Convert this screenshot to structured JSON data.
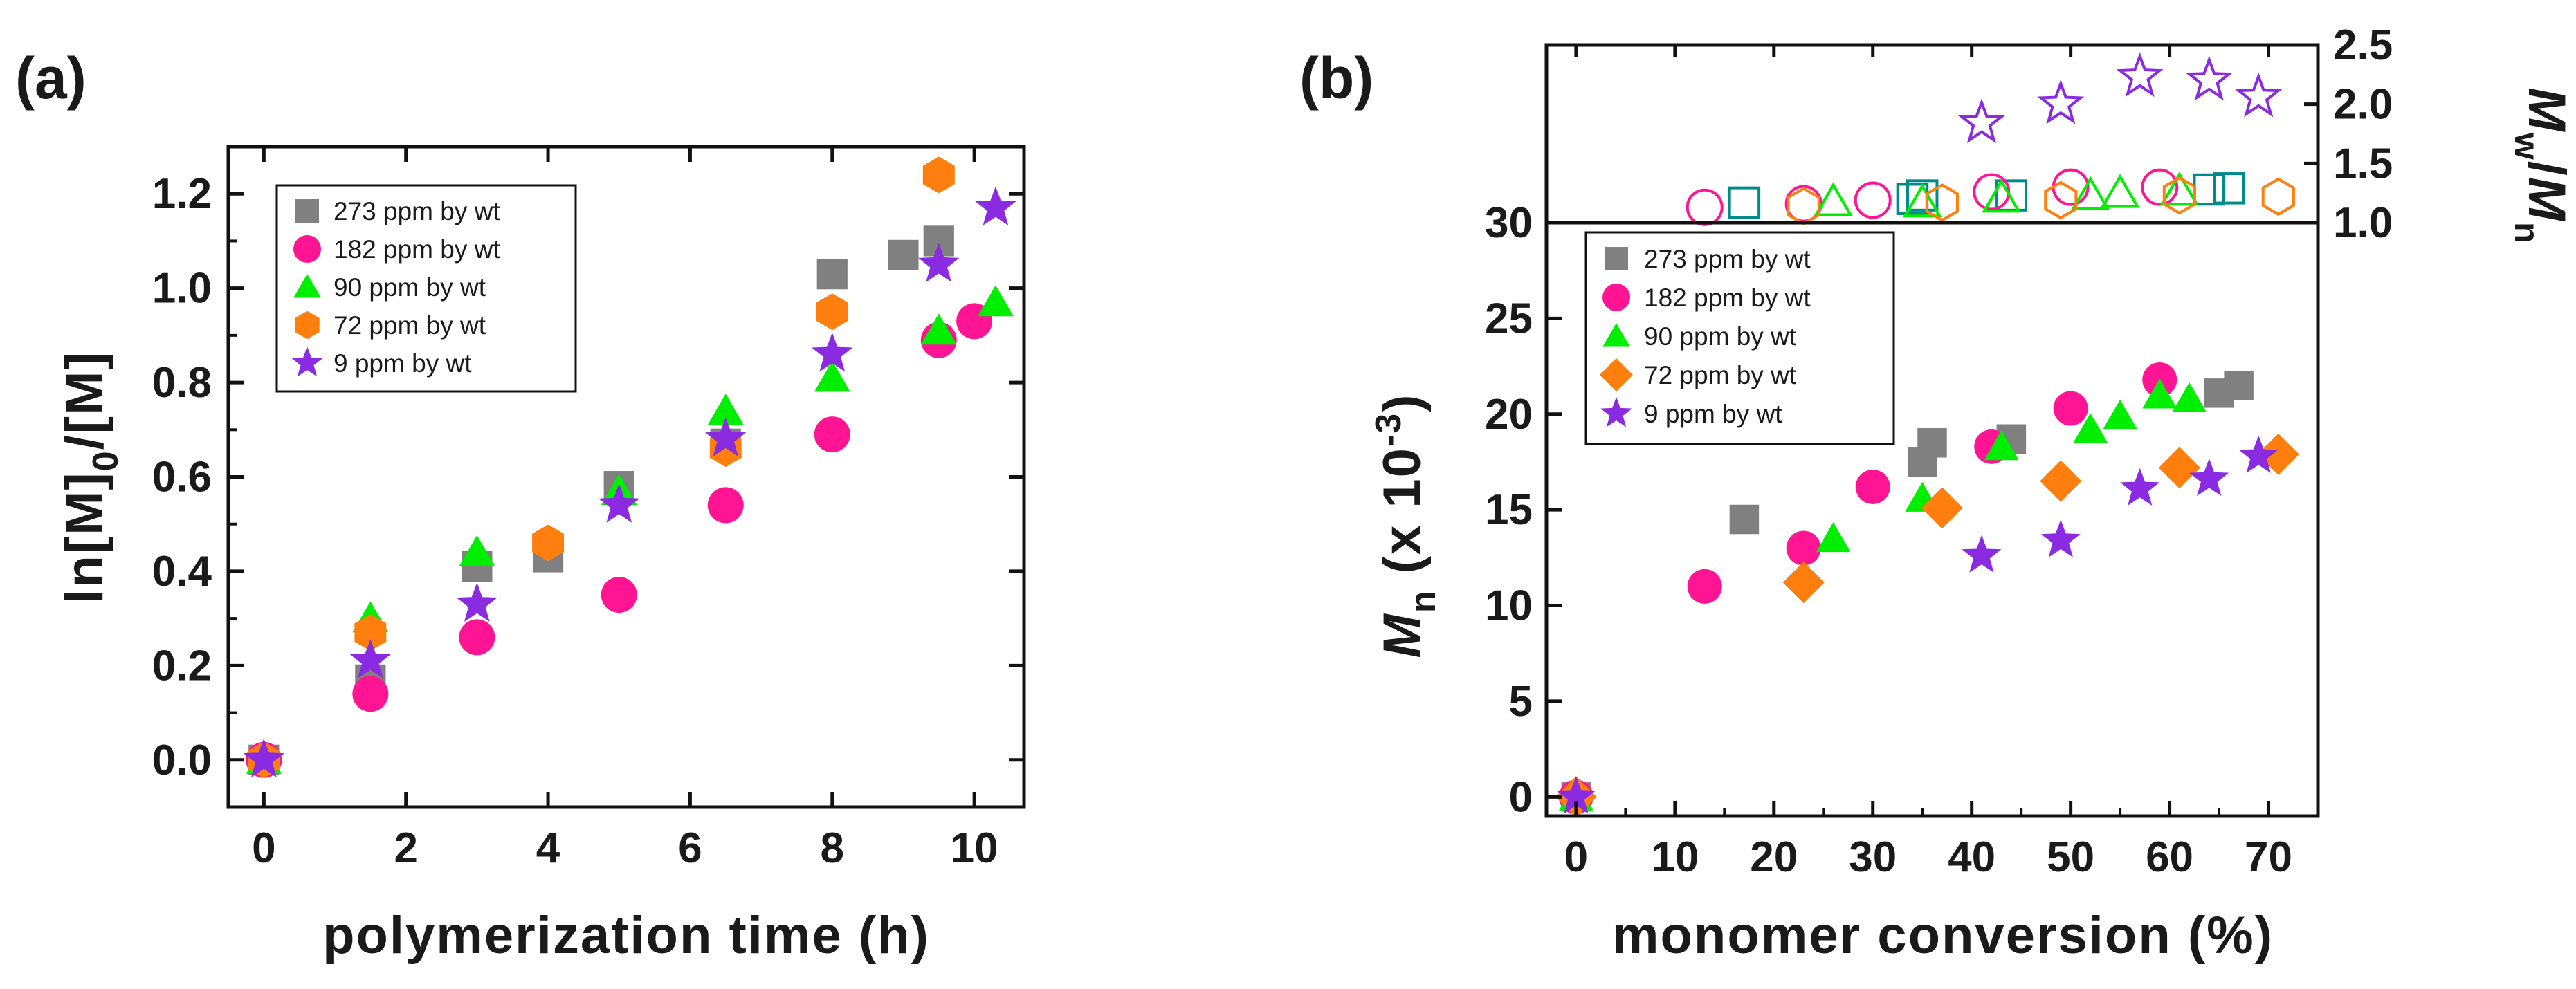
{
  "panel_labels": {
    "a": "(a)",
    "b": "(b)"
  },
  "chart_data": [
    {
      "id": "a",
      "type": "scatter",
      "xlabel": "polymerization time (h)",
      "ylabel": "ln[M]0/[M]",
      "ylabel_parts": {
        "main": "ln[M]",
        "sub": "0",
        "rest": "/[M]"
      },
      "xlim": [
        -0.5,
        10.7
      ],
      "ylim": [
        -0.1,
        1.3
      ],
      "xticks": [
        0,
        2,
        4,
        6,
        8,
        10
      ],
      "xtick_labels": [
        "0",
        "2",
        "4",
        "6",
        "8",
        "10"
      ],
      "yticks": [
        0.0,
        0.2,
        0.4,
        0.6,
        0.8,
        1.0,
        1.2
      ],
      "ytick_labels": [
        "0.0",
        "0.2",
        "0.4",
        "0.6",
        "0.8",
        "1.0",
        "1.2"
      ],
      "legend_position": "top-left",
      "series": [
        {
          "name": "273 ppm by wt",
          "marker": "square",
          "color": "#808080",
          "points": [
            [
              0,
              0
            ],
            [
              1.5,
              0.17
            ],
            [
              3,
              0.41
            ],
            [
              4,
              0.43
            ],
            [
              5,
              0.58
            ],
            [
              6.5,
              0.67
            ],
            [
              8,
              1.03
            ],
            [
              9,
              1.07
            ],
            [
              9.5,
              1.1
            ]
          ]
        },
        {
          "name": "182 ppm by wt",
          "marker": "circle",
          "color": "#ff1493",
          "points": [
            [
              0,
              0
            ],
            [
              1.5,
              0.14
            ],
            [
              3,
              0.26
            ],
            [
              5,
              0.35
            ],
            [
              6.5,
              0.54
            ],
            [
              8,
              0.69
            ],
            [
              9.5,
              0.89
            ],
            [
              10,
              0.93
            ]
          ]
        },
        {
          "name": "90 ppm by wt",
          "marker": "triangle",
          "color": "#00ee00",
          "points": [
            [
              0,
              0
            ],
            [
              1.5,
              0.3
            ],
            [
              3,
              0.44
            ],
            [
              5,
              0.57
            ],
            [
              6.5,
              0.74
            ],
            [
              8,
              0.81
            ],
            [
              9.5,
              0.91
            ],
            [
              10.3,
              0.97
            ]
          ]
        },
        {
          "name": "72 ppm by wt",
          "marker": "hexagon",
          "color": "#ff7f0e",
          "points": [
            [
              0,
              0
            ],
            [
              1.5,
              0.27
            ],
            [
              4,
              0.46
            ],
            [
              6.5,
              0.66
            ],
            [
              8,
              0.95
            ],
            [
              9.5,
              1.24
            ]
          ]
        },
        {
          "name": "9 ppm by wt",
          "marker": "star",
          "color": "#8a2be2",
          "points": [
            [
              0,
              0
            ],
            [
              1.5,
              0.21
            ],
            [
              3,
              0.33
            ],
            [
              5,
              0.54
            ],
            [
              6.5,
              0.68
            ],
            [
              8,
              0.86
            ],
            [
              9.5,
              1.05
            ],
            [
              10.3,
              1.17
            ]
          ]
        }
      ]
    },
    {
      "id": "b-lower",
      "type": "scatter",
      "xlabel": "monomer conversion (%)",
      "ylabel": "Mn (x 10-3)",
      "ylabel_parts": {
        "main": "M",
        "sub": "n",
        "open": " (x 10",
        "sup": "-3",
        "close": ")"
      },
      "xlim": [
        -3,
        75
      ],
      "ylim": [
        -1,
        30
      ],
      "xticks": [
        0,
        10,
        20,
        30,
        40,
        50,
        60,
        70
      ],
      "xtick_labels": [
        "0",
        "10",
        "20",
        "30",
        "40",
        "50",
        "60",
        "70"
      ],
      "yticks": [
        0,
        5,
        10,
        15,
        20,
        25,
        30
      ],
      "ytick_labels": [
        "0",
        "5",
        "10",
        "15",
        "20",
        "25",
        "30"
      ],
      "legend_position": "top-left",
      "series": [
        {
          "name": "273 ppm by wt",
          "marker": "square",
          "color": "#808080",
          "points": [
            [
              0,
              0
            ],
            [
              17,
              14.5
            ],
            [
              35,
              17.5
            ],
            [
              36,
              18.5
            ],
            [
              44,
              18.7
            ],
            [
              65,
              21.1
            ],
            [
              67,
              21.5
            ]
          ]
        },
        {
          "name": "182 ppm by wt",
          "marker": "circle",
          "color": "#ff1493",
          "points": [
            [
              0,
              0
            ],
            [
              13,
              11
            ],
            [
              23,
              13
            ],
            [
              30,
              16.2
            ],
            [
              42,
              18.3
            ],
            [
              50,
              20.3
            ],
            [
              59,
              21.8
            ]
          ]
        },
        {
          "name": "90 ppm by wt",
          "marker": "triangle",
          "color": "#00ee00",
          "points": [
            [
              0,
              0
            ],
            [
              26,
              13.5
            ],
            [
              35,
              15.6
            ],
            [
              43,
              18.3
            ],
            [
              52,
              19.2
            ],
            [
              55,
              19.9
            ],
            [
              59,
              21
            ],
            [
              62,
              20.8
            ]
          ]
        },
        {
          "name": "72 ppm by wt",
          "marker": "diamond",
          "color": "#ff7f0e",
          "points": [
            [
              0,
              0
            ],
            [
              23,
              11.2
            ],
            [
              37,
              15.1
            ],
            [
              49,
              16.5
            ],
            [
              61,
              17.2
            ],
            [
              71,
              17.9
            ]
          ]
        },
        {
          "name": "9 ppm by wt",
          "marker": "star",
          "color": "#8a2be2",
          "points": [
            [
              0,
              0
            ],
            [
              41,
              12.6
            ],
            [
              49,
              13.4
            ],
            [
              57,
              16.1
            ],
            [
              64,
              16.6
            ],
            [
              69,
              17.8
            ]
          ]
        }
      ]
    },
    {
      "id": "b-upper",
      "type": "scatter",
      "ylabel": "Mw/Mn",
      "ylabel_parts": {
        "m1": "M",
        "s1": "w",
        "slash": "/",
        "m2": "M",
        "s2": "n"
      },
      "xlim": [
        -3,
        75
      ],
      "ylim": [
        1.0,
        2.5
      ],
      "yticks": [
        1.0,
        1.5,
        2.0,
        2.5
      ],
      "ytick_labels": [
        "1.0",
        "1.5",
        "2.0",
        "2.5"
      ],
      "series": [
        {
          "name": "273 ppm by wt",
          "marker": "square-open",
          "color": "#008b8b",
          "points": [
            [
              17,
              1.17
            ],
            [
              34,
              1.2
            ],
            [
              35,
              1.23
            ],
            [
              44,
              1.23
            ],
            [
              64,
              1.28
            ],
            [
              66,
              1.29
            ]
          ]
        },
        {
          "name": "182 ppm by wt",
          "marker": "circle-open",
          "color": "#ff1493",
          "points": [
            [
              13,
              1.13
            ],
            [
              23,
              1.16
            ],
            [
              30,
              1.19
            ],
            [
              42,
              1.26
            ],
            [
              50,
              1.3
            ],
            [
              59,
              1.3
            ]
          ]
        },
        {
          "name": "90 ppm by wt",
          "marker": "triangle-open",
          "color": "#00ee00",
          "points": [
            [
              26,
              1.18
            ],
            [
              35,
              1.17
            ],
            [
              43,
              1.21
            ],
            [
              52,
              1.23
            ],
            [
              55,
              1.25
            ],
            [
              61,
              1.27
            ]
          ]
        },
        {
          "name": "72 ppm by wt",
          "marker": "hexagon-open",
          "color": "#ff7f0e",
          "points": [
            [
              23,
              1.14
            ],
            [
              37,
              1.17
            ],
            [
              49,
              1.19
            ],
            [
              61,
              1.23
            ],
            [
              71,
              1.22
            ]
          ]
        },
        {
          "name": "9 ppm by wt",
          "marker": "star-open",
          "color": "#8a2be2",
          "points": [
            [
              41,
              1.84
            ],
            [
              49,
              2.0
            ],
            [
              57,
              2.23
            ],
            [
              64,
              2.2
            ],
            [
              69,
              2.06
            ]
          ]
        }
      ]
    }
  ]
}
